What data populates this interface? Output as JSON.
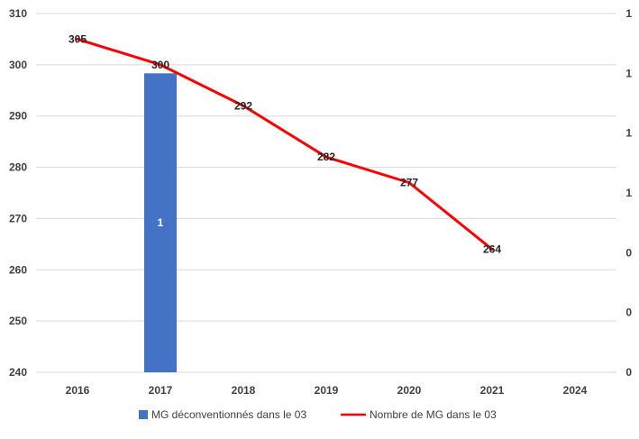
{
  "chart_data": {
    "type": "bar",
    "categories": [
      "2016",
      "2017",
      "2018",
      "2019",
      "2020",
      "2021",
      "2024"
    ],
    "series": [
      {
        "name": "MG déconventionnés dans le 03",
        "type": "bar",
        "axis": "right",
        "values": [
          null,
          1,
          null,
          null,
          null,
          null,
          null
        ],
        "color": "#4472C4"
      },
      {
        "name": "Nombre de MG dans le 03",
        "type": "line",
        "axis": "left",
        "values": [
          305,
          300,
          292,
          282,
          277,
          264,
          null
        ],
        "color": "#FF0000"
      }
    ],
    "y_left": {
      "ylim": [
        240,
        310
      ],
      "ticks": [
        "240",
        "250",
        "260",
        "270",
        "280",
        "290",
        "300",
        "310"
      ]
    },
    "y_right": {
      "ylim": [
        0,
        1.2
      ],
      "ticks": [
        "0",
        "0",
        "0",
        "1",
        "1",
        "1",
        "1"
      ]
    },
    "grid": true,
    "legend_position": "bottom",
    "title": "",
    "xlabel": "",
    "ylabel": ""
  }
}
